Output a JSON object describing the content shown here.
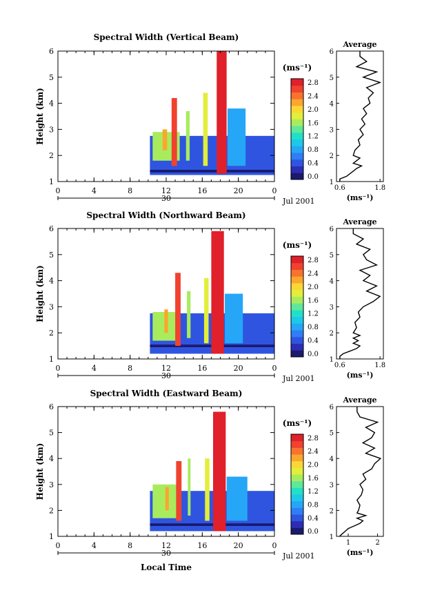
{
  "colorbar": {
    "unit": "(ms⁻¹)",
    "colors": [
      "#1a1a6e",
      "#2d2db3",
      "#2f55e0",
      "#2f7ef5",
      "#25a6f7",
      "#1dc8e9",
      "#22e0c8",
      "#5fe89a",
      "#a8ec5e",
      "#e3ee3b",
      "#fbd735",
      "#fba62f",
      "#f8732e",
      "#f0422f",
      "#e0202a"
    ]
  },
  "x_axis": {
    "ticks": [
      "0",
      "4",
      "8",
      "12",
      "16",
      "20",
      "0"
    ],
    "date_label": "30",
    "date_right": "Jul 2001",
    "xlabel": "Local Time"
  },
  "y_axis": {
    "ticks": [
      "1",
      "2",
      "3",
      "4",
      "5",
      "6"
    ],
    "ylabel": "Height (km)"
  },
  "average_title": "Average",
  "average_xlabel": "(ms⁻¹)",
  "chart_data": [
    {
      "type": "heatmap",
      "title": "Spectral Width (Vertical Beam)",
      "xlabel": "",
      "ylabel": "Height (km)",
      "xlim": [
        0,
        24
      ],
      "ylim": [
        1,
        6
      ],
      "colorbar_ticks": [
        "0.0",
        "0.4",
        "0.8",
        "1.2",
        "1.6",
        "2.0",
        "2.4",
        "2.8"
      ],
      "colorbar_range": [
        0,
        3.0
      ],
      "blocks": [
        {
          "t0": 10.2,
          "t1": 24,
          "h0": 1.25,
          "h1": 2.75,
          "v": 0.6
        },
        {
          "t0": 10.2,
          "t1": 24,
          "h0": 1.35,
          "h1": 1.45,
          "v": 0.1
        },
        {
          "t0": 10.5,
          "t1": 13.5,
          "h0": 1.8,
          "h1": 2.9,
          "v": 1.6
        },
        {
          "t0": 12.6,
          "t1": 13.2,
          "h0": 1.6,
          "h1": 4.2,
          "v": 2.8
        },
        {
          "t0": 14.2,
          "t1": 14.6,
          "h0": 1.8,
          "h1": 3.7,
          "v": 1.6
        },
        {
          "t0": 16.1,
          "t1": 16.6,
          "h0": 1.6,
          "h1": 4.4,
          "v": 1.8
        },
        {
          "t0": 17.6,
          "t1": 18.7,
          "h0": 1.3,
          "h1": 6.0,
          "v": 3.0
        },
        {
          "t0": 18.8,
          "t1": 20.8,
          "h0": 1.6,
          "h1": 3.8,
          "v": 0.9
        },
        {
          "t0": 11.6,
          "t1": 12.1,
          "h0": 2.2,
          "h1": 3.0,
          "v": 2.4
        }
      ],
      "average": {
        "xticks": [
          "0.6",
          "1.8"
        ],
        "xlim": [
          0.5,
          1.9
        ],
        "h": [
          1.0,
          1.1,
          1.2,
          1.3,
          1.4,
          1.5,
          1.6,
          1.7,
          1.8,
          1.9,
          2.0,
          2.2,
          2.4,
          2.6,
          2.8,
          3.0,
          3.2,
          3.4,
          3.6,
          3.8,
          4.0,
          4.2,
          4.4,
          4.6,
          4.8,
          5.0,
          5.2,
          5.4,
          5.6,
          5.8,
          6.0
        ],
        "v": [
          0.6,
          0.6,
          0.8,
          0.9,
          1.0,
          1.1,
          1.25,
          1.0,
          1.1,
          1.2,
          1.0,
          1.05,
          1.2,
          1.15,
          1.3,
          1.2,
          1.35,
          1.25,
          1.4,
          1.3,
          1.5,
          1.45,
          1.6,
          1.4,
          1.8,
          1.3,
          1.7,
          1.1,
          1.4,
          1.2,
          1.2
        ]
      }
    },
    {
      "type": "heatmap",
      "title": "Spectral Width (Northward Beam)",
      "xlabel": "",
      "ylabel": "Height (km)",
      "xlim": [
        0,
        24
      ],
      "ylim": [
        1,
        6
      ],
      "colorbar_ticks": [
        "0.0",
        "0.4",
        "0.8",
        "1.2",
        "1.6",
        "2.0",
        "2.4",
        "2.8"
      ],
      "colorbar_range": [
        0,
        3.0
      ],
      "blocks": [
        {
          "t0": 10.2,
          "t1": 24,
          "h0": 1.2,
          "h1": 2.75,
          "v": 0.6
        },
        {
          "t0": 10.2,
          "t1": 24,
          "h0": 1.45,
          "h1": 1.55,
          "v": 0.1
        },
        {
          "t0": 10.5,
          "t1": 13.5,
          "h0": 1.7,
          "h1": 2.8,
          "v": 1.6
        },
        {
          "t0": 13.0,
          "t1": 13.6,
          "h0": 1.5,
          "h1": 4.3,
          "v": 2.8
        },
        {
          "t0": 14.3,
          "t1": 14.7,
          "h0": 1.8,
          "h1": 3.6,
          "v": 1.6
        },
        {
          "t0": 16.2,
          "t1": 16.7,
          "h0": 1.6,
          "h1": 4.1,
          "v": 1.8
        },
        {
          "t0": 17.0,
          "t1": 18.4,
          "h0": 1.2,
          "h1": 5.9,
          "v": 3.0
        },
        {
          "t0": 18.5,
          "t1": 20.5,
          "h0": 1.6,
          "h1": 3.5,
          "v": 0.9
        },
        {
          "t0": 11.8,
          "t1": 12.2,
          "h0": 2.0,
          "h1": 2.9,
          "v": 2.4
        }
      ],
      "average": {
        "xticks": [
          "0.6",
          "1.8"
        ],
        "xlim": [
          0.5,
          1.9
        ],
        "h": [
          1.0,
          1.1,
          1.2,
          1.3,
          1.4,
          1.5,
          1.6,
          1.7,
          1.8,
          1.9,
          2.0,
          2.2,
          2.4,
          2.6,
          2.8,
          3.0,
          3.2,
          3.4,
          3.6,
          3.8,
          4.0,
          4.2,
          4.4,
          4.6,
          4.8,
          5.0,
          5.2,
          5.4,
          5.6,
          5.8,
          6.0
        ],
        "v": [
          0.6,
          0.6,
          0.7,
          0.9,
          1.1,
          1.2,
          1.0,
          1.15,
          1.0,
          1.2,
          1.0,
          1.1,
          1.05,
          1.2,
          1.15,
          1.3,
          1.6,
          1.8,
          1.4,
          1.7,
          1.3,
          1.5,
          1.2,
          1.7,
          1.4,
          1.3,
          1.5,
          1.1,
          1.3,
          1.0,
          1.0
        ]
      }
    },
    {
      "type": "heatmap",
      "title": "Spectral Width (Eastward Beam)",
      "xlabel": "Local Time",
      "ylabel": "Height (km)",
      "xlim": [
        0,
        24
      ],
      "ylim": [
        1,
        6
      ],
      "colorbar_ticks": [
        "0.0",
        "0.4",
        "0.8",
        "1.2",
        "1.6",
        "2.0",
        "2.4",
        "2.8"
      ],
      "colorbar_range": [
        0,
        3.0
      ],
      "blocks": [
        {
          "t0": 10.2,
          "t1": 24,
          "h0": 1.2,
          "h1": 2.75,
          "v": 0.6
        },
        {
          "t0": 10.2,
          "t1": 24,
          "h0": 1.4,
          "h1": 1.5,
          "v": 0.1
        },
        {
          "t0": 10.5,
          "t1": 13.5,
          "h0": 1.7,
          "h1": 3.0,
          "v": 1.6
        },
        {
          "t0": 13.1,
          "t1": 13.7,
          "h0": 1.6,
          "h1": 3.9,
          "v": 2.8
        },
        {
          "t0": 14.4,
          "t1": 14.7,
          "h0": 1.8,
          "h1": 4.0,
          "v": 1.6
        },
        {
          "t0": 16.3,
          "t1": 16.8,
          "h0": 1.6,
          "h1": 4.0,
          "v": 1.8
        },
        {
          "t0": 17.2,
          "t1": 18.6,
          "h0": 1.2,
          "h1": 5.8,
          "v": 3.0
        },
        {
          "t0": 18.7,
          "t1": 21.0,
          "h0": 1.6,
          "h1": 3.3,
          "v": 0.9
        },
        {
          "t0": 11.9,
          "t1": 12.3,
          "h0": 2.0,
          "h1": 2.9,
          "v": 2.4
        }
      ],
      "average": {
        "xticks": [
          "1",
          "2"
        ],
        "xlim": [
          0.6,
          2.2
        ],
        "h": [
          1.0,
          1.1,
          1.2,
          1.3,
          1.4,
          1.5,
          1.6,
          1.7,
          1.8,
          1.9,
          2.0,
          2.2,
          2.4,
          2.6,
          2.8,
          3.0,
          3.2,
          3.4,
          3.6,
          3.8,
          4.0,
          4.2,
          4.4,
          4.6,
          4.8,
          5.0,
          5.2,
          5.4,
          5.6,
          5.8,
          6.0
        ],
        "v": [
          0.7,
          0.8,
          0.9,
          1.0,
          1.2,
          1.4,
          1.5,
          1.3,
          1.6,
          1.3,
          1.35,
          1.4,
          1.3,
          1.45,
          1.5,
          1.4,
          1.6,
          1.5,
          1.8,
          1.9,
          2.1,
          1.6,
          1.9,
          1.5,
          1.8,
          1.9,
          1.6,
          2.0,
          1.4,
          1.3,
          1.3
        ]
      }
    }
  ]
}
